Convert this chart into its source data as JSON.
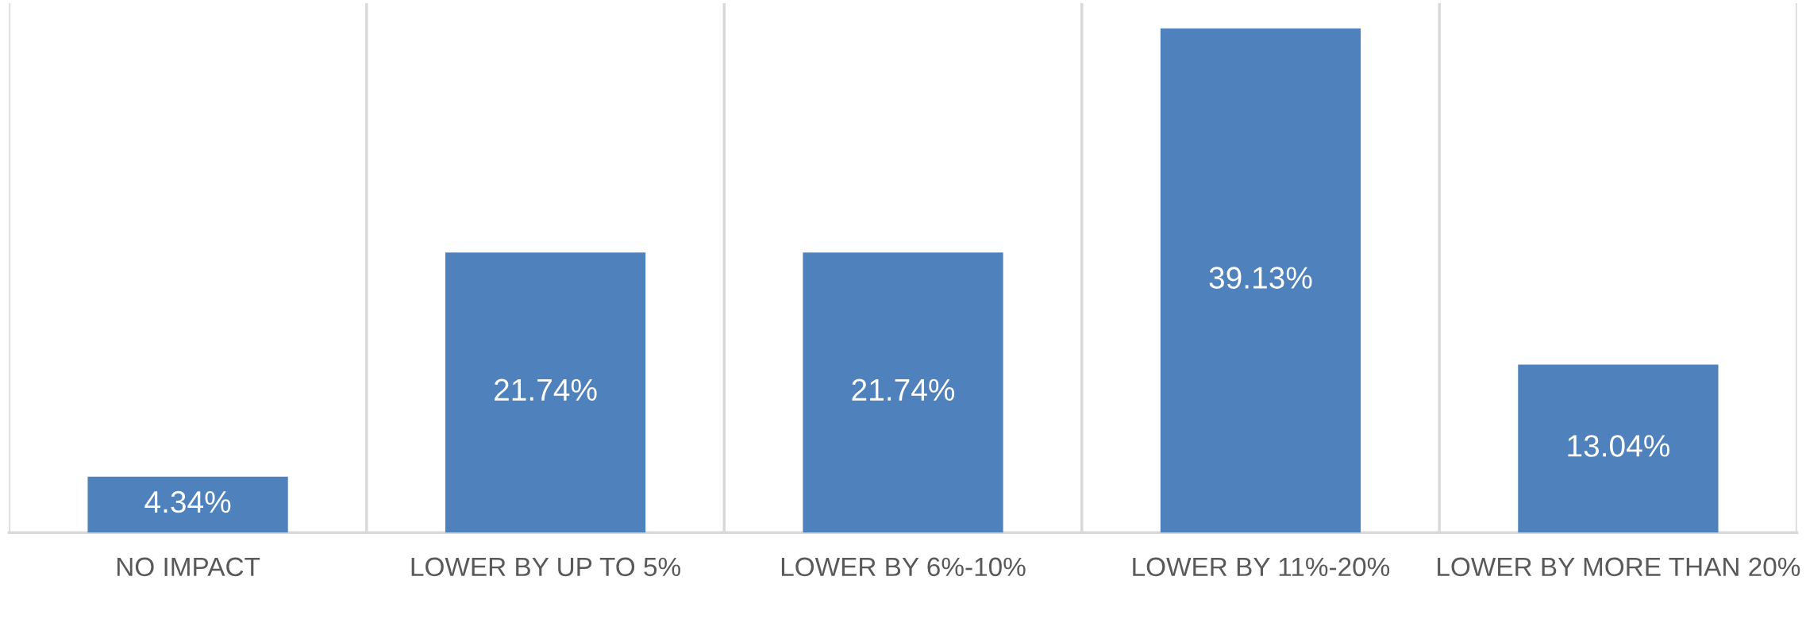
{
  "chart_data": {
    "type": "bar",
    "categories": [
      "NO IMPACT",
      "LOWER BY UP TO 5%",
      "LOWER BY 6%-10%",
      "LOWER BY 11%-20%",
      "LOWER BY MORE THAN 20%"
    ],
    "values": [
      4.34,
      21.74,
      21.74,
      39.13,
      13.04
    ],
    "value_labels": [
      "4.34%",
      "21.74%",
      "21.74%",
      "39.13%",
      "13.04%"
    ],
    "color": "#4f81bd",
    "grid": "x"
  }
}
